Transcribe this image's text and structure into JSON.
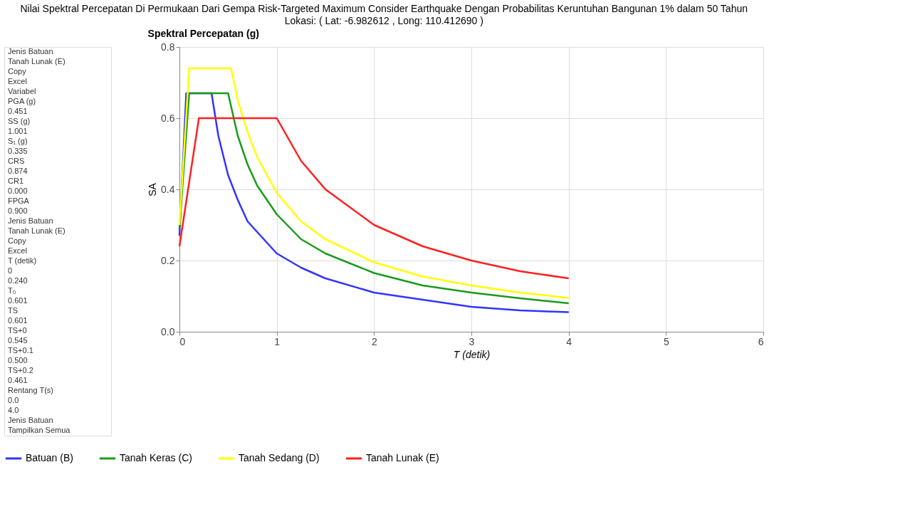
{
  "chart_data": [
    {
      "type": "other",
      "title": "Nilai Spektral Percepatan Di Permukaan Dari Gempa Risk-Targeted Maximum Consider Earthquake Dengan Probabilitas Keruntuhan Bangunan 1% dalam 50 Tahun",
      "subtitle": "Lokasi: ( Lat: -6.982612 , Long: 110.412690 )",
      "annotations": [
        "Jenis Batuan",
        "Tanah Lunak (E)",
        "Copy",
        "Excel",
        "Variabel",
        "PGA (g)",
        "0.451",
        "SS (g)",
        "1.001",
        "S₁ (g)",
        "0.335",
        "CRS",
        "0.874",
        "CR1",
        "0.000",
        "FPGA",
        "0.900",
        "Jenis Batuan",
        "Tanah Lunak (E)",
        "Copy",
        "Excel",
        "T (detik)",
        "0",
        "0.240",
        "T₀",
        "0.601",
        "TS",
        "0.601",
        "TS+0",
        "0.545",
        "TS+0.1",
        "0.500",
        "TS+0.2",
        "0.461",
        "Rentang T(s)",
        "0.0",
        "4.0",
        "Jenis Batuan",
        "Tampilkan Semua"
      ]
    },
    {
      "type": "line",
      "title": "Spektral Percepatan (g)",
      "xlabel": "T (detik)",
      "ylabel": "SA",
      "xlim": [
        0,
        6
      ],
      "xticks": [
        0,
        1,
        2,
        3,
        4,
        5,
        6
      ],
      "ylim": [
        0,
        0.8
      ],
      "yticks": [
        {
          "value": 0,
          "label": "0.0"
        },
        0.2,
        0.4,
        0.6,
        0.8
      ],
      "grid": true,
      "legend": "bottom",
      "marker": "none",
      "line_style": "solid",
      "series": [
        {
          "name": "Batuan (B)",
          "color": "#3333ff",
          "x": [
            0,
            0.07,
            0.33,
            0.4,
            0.5,
            0.6,
            0.7,
            0.8,
            1,
            1.25,
            1.5,
            2,
            2.5,
            3,
            3.5,
            4
          ],
          "values": [
            0.27,
            0.67,
            0.67,
            0.55,
            0.44,
            0.37,
            0.31,
            0.28,
            0.22,
            0.18,
            0.15,
            0.11,
            0.09,
            0.07,
            0.06,
            0.055
          ]
        },
        {
          "name": "Tanah Keras (C)",
          "color": "#1a9a1a",
          "x": [
            0,
            0.1,
            0.5,
            0.6,
            0.7,
            0.8,
            1,
            1.25,
            1.5,
            2,
            2.5,
            3,
            3.5,
            4
          ],
          "values": [
            0.29,
            0.67,
            0.67,
            0.55,
            0.47,
            0.41,
            0.33,
            0.26,
            0.22,
            0.165,
            0.13,
            0.11,
            0.094,
            0.08
          ]
        },
        {
          "name": "Tanah Sedang (D)",
          "color": "#ffff00",
          "x": [
            0,
            0.1,
            0.53,
            0.6,
            0.7,
            0.8,
            1,
            1.25,
            1.5,
            2,
            2.5,
            3,
            3.5,
            4
          ],
          "values": [
            0.3,
            0.74,
            0.74,
            0.65,
            0.56,
            0.49,
            0.39,
            0.31,
            0.26,
            0.195,
            0.155,
            0.13,
            0.11,
            0.095
          ]
        },
        {
          "name": "Tanah Lunak (E)",
          "color": "#ff2020",
          "x": [
            0,
            0.2,
            1,
            1.25,
            1.5,
            2,
            2.5,
            3,
            3.5,
            4
          ],
          "values": [
            0.24,
            0.6,
            0.6,
            0.48,
            0.4,
            0.3,
            0.24,
            0.2,
            0.17,
            0.15
          ]
        }
      ]
    }
  ]
}
